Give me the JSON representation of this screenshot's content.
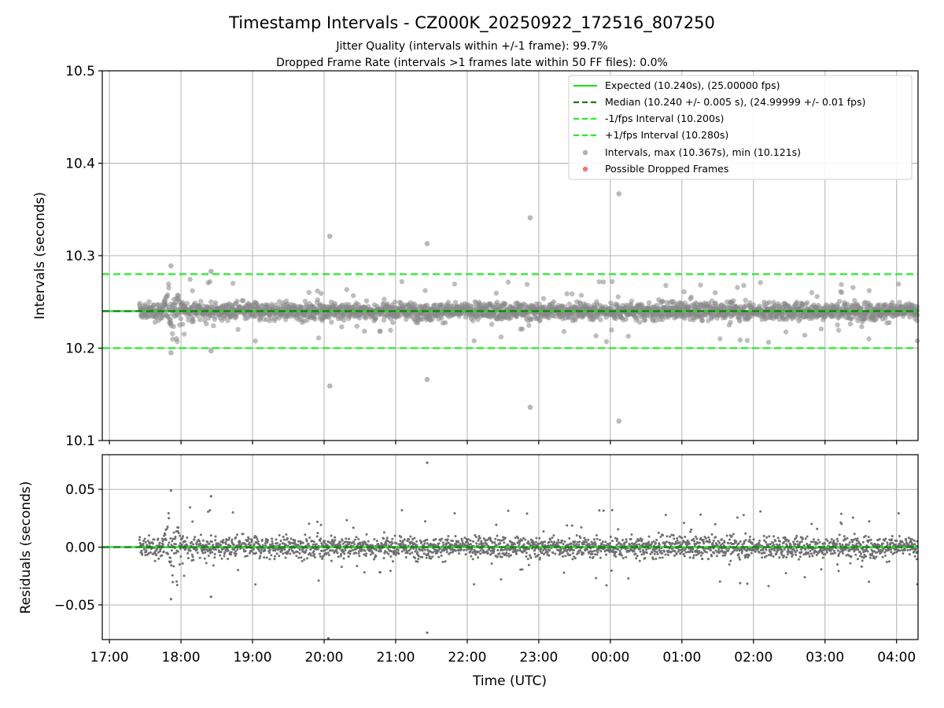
{
  "chart_data": [
    {
      "type": "scatter",
      "title": "Timestamp Intervals - CZ000K_20250922_172516_807250",
      "subtitle_1": "Jitter Quality (intervals within +/-1 frame): 99.7%",
      "subtitle_2": "Dropped Frame Rate (intervals >1 frames late within 50 FF files): 0.0%",
      "xlabel": "",
      "ylabel": "Intervals (seconds)",
      "xlim_hours": [
        16.9,
        28.3
      ],
      "ylim": [
        10.1,
        10.5
      ],
      "yticks": [
        "10.1",
        "10.2",
        "10.3",
        "10.4",
        "10.5"
      ],
      "grid": true,
      "legend_position": "top-right",
      "reference_lines": {
        "expected": 10.24,
        "median": 10.24,
        "minus_fps": 10.2,
        "plus_fps": 10.28
      },
      "legend": [
        {
          "label": "Expected (10.240s), (25.00000 fps)",
          "style": "solid",
          "color": "#22dd22"
        },
        {
          "label": "Median (10.240 +/- 0.005 s), (24.99999 +/- 0.01 fps)",
          "style": "dashed",
          "color": "#1a7a1a"
        },
        {
          "label": "-1/fps Interval (10.200s)",
          "style": "dashed",
          "color": "#22ee22"
        },
        {
          "label": "+1/fps Interval (10.280s)",
          "style": "dashed",
          "color": "#22ee22"
        },
        {
          "label": "Intervals, max (10.367s), min (10.121s)",
          "style": "marker",
          "color": "#909090"
        },
        {
          "label": "Possible Dropped Frames",
          "style": "marker",
          "color": "#f06060"
        }
      ],
      "series": [
        {
          "name": "Intervals (notable outliers)",
          "points": [
            {
              "t": 17.86,
              "y": 10.289
            },
            {
              "t": 17.86,
              "y": 10.195
            },
            {
              "t": 18.42,
              "y": 10.283
            },
            {
              "t": 18.42,
              "y": 10.197
            },
            {
              "t": 20.08,
              "y": 10.321
            },
            {
              "t": 20.08,
              "y": 10.159
            },
            {
              "t": 21.44,
              "y": 10.313
            },
            {
              "t": 21.44,
              "y": 10.166
            },
            {
              "t": 22.88,
              "y": 10.341
            },
            {
              "t": 22.88,
              "y": 10.136
            },
            {
              "t": 24.12,
              "y": 10.367
            },
            {
              "t": 24.12,
              "y": 10.121
            }
          ],
          "bulk": {
            "t_start": 17.42,
            "t_end": 28.3,
            "center": 10.24,
            "typical_spread": 0.008
          }
        },
        {
          "name": "Possible Dropped Frames",
          "points": []
        }
      ]
    },
    {
      "type": "scatter",
      "title": "",
      "xlabel": "Time (UTC)",
      "ylabel": "Residuals (seconds)",
      "xlim_hours": [
        16.9,
        28.3
      ],
      "ylim": [
        -0.08,
        0.08
      ],
      "yticks": [
        "−0.05",
        "0.00",
        "0.05"
      ],
      "xticks": [
        "17:00",
        "18:00",
        "19:00",
        "20:00",
        "21:00",
        "22:00",
        "23:00",
        "00:00",
        "01:00",
        "02:00",
        "03:00",
        "04:00"
      ],
      "grid": true,
      "reference_lines": {
        "zero": 0.0
      },
      "series": [
        {
          "name": "Residuals (notable outliers)",
          "points": [
            {
              "t": 17.86,
              "y": 0.049
            },
            {
              "t": 17.86,
              "y": -0.045
            },
            {
              "t": 18.42,
              "y": 0.044
            },
            {
              "t": 18.42,
              "y": -0.043
            },
            {
              "t": 20.06,
              "y": -0.079
            },
            {
              "t": 21.44,
              "y": 0.073
            },
            {
              "t": 21.44,
              "y": -0.074
            }
          ]
        }
      ]
    }
  ]
}
